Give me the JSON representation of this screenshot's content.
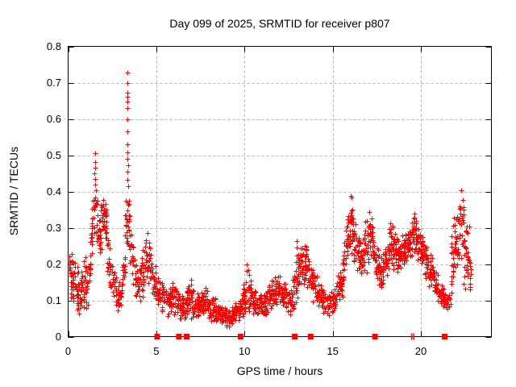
{
  "window": {
    "title": "Day 099 of 2025, SRMTID for receiver p807"
  },
  "chart_data": {
    "type": "scatter",
    "title": "Day 099 of 2025, SRMTID for receiver p807",
    "xlabel": "GPS time / hours",
    "ylabel": "SRMTID / TECUs",
    "xlim": [
      0,
      24
    ],
    "ylim": [
      0,
      0.8
    ],
    "xticks": [
      [
        0,
        "0"
      ],
      [
        5,
        "5"
      ],
      [
        10,
        "10"
      ],
      [
        15,
        "15"
      ],
      [
        20,
        "20"
      ]
    ],
    "yticks": [
      [
        0,
        "0"
      ],
      [
        0.1,
        "0.1"
      ],
      [
        0.2,
        "0.2"
      ],
      [
        0.3,
        "0.3"
      ],
      [
        0.4,
        "0.4"
      ],
      [
        0.5,
        "0.5"
      ],
      [
        0.6,
        "0.6"
      ],
      [
        0.7,
        "0.7"
      ],
      [
        0.8,
        "0.8"
      ]
    ],
    "grid": true,
    "legend": "none",
    "marker": "plus",
    "marker_color": "#ff0000",
    "grid_color": "#b0b0b0",
    "axis_color": "#000000",
    "seed": 2025099,
    "points_per_hour": 78,
    "envelope_note": "Dense red '+' scatter; band of [hour, y_low, y_high, density_weight] control points read from the plot",
    "envelope": [
      [
        0.05,
        0.13,
        0.27,
        1.6
      ],
      [
        0.3,
        0.07,
        0.24,
        1.4
      ],
      [
        0.6,
        0.05,
        0.2,
        1.2
      ],
      [
        0.9,
        0.06,
        0.22,
        1.2
      ],
      [
        1.2,
        0.08,
        0.26,
        1.2
      ],
      [
        1.45,
        0.27,
        0.46,
        1.4
      ],
      [
        1.6,
        0.25,
        0.43,
        1.2
      ],
      [
        1.8,
        0.2,
        0.36,
        1.0
      ],
      [
        2.0,
        0.3,
        0.41,
        1.8
      ],
      [
        2.15,
        0.22,
        0.4,
        1.2
      ],
      [
        2.3,
        0.12,
        0.28,
        1.0
      ],
      [
        2.6,
        0.07,
        0.2,
        1.0
      ],
      [
        2.9,
        0.05,
        0.16,
        1.0
      ],
      [
        3.1,
        0.08,
        0.2,
        1.0
      ],
      [
        3.3,
        0.24,
        0.4,
        1.5
      ],
      [
        3.45,
        0.22,
        0.4,
        1.5
      ],
      [
        3.6,
        0.13,
        0.3,
        1.0
      ],
      [
        3.9,
        0.09,
        0.2,
        1.0
      ],
      [
        4.2,
        0.1,
        0.24,
        1.0
      ],
      [
        4.5,
        0.16,
        0.32,
        1.3
      ],
      [
        4.7,
        0.1,
        0.24,
        1.0
      ],
      [
        5.0,
        0.07,
        0.19,
        1.1
      ],
      [
        5.4,
        0.05,
        0.15,
        1.1
      ],
      [
        5.8,
        0.05,
        0.14,
        1.1
      ],
      [
        6.05,
        0.05,
        0.21,
        1.3
      ],
      [
        6.3,
        0.04,
        0.12,
        1.1
      ],
      [
        6.6,
        0.04,
        0.11,
        1.1
      ],
      [
        6.95,
        0.04,
        0.19,
        1.3
      ],
      [
        7.2,
        0.04,
        0.12,
        1.2
      ],
      [
        7.6,
        0.05,
        0.14,
        1.2
      ],
      [
        7.9,
        0.05,
        0.14,
        1.2
      ],
      [
        8.2,
        0.04,
        0.12,
        1.2
      ],
      [
        8.6,
        0.03,
        0.1,
        1.2
      ],
      [
        9.0,
        0.02,
        0.08,
        1.2
      ],
      [
        9.4,
        0.03,
        0.09,
        1.2
      ],
      [
        9.8,
        0.04,
        0.11,
        1.2
      ],
      [
        10.2,
        0.06,
        0.22,
        1.3
      ],
      [
        10.5,
        0.05,
        0.15,
        1.1
      ],
      [
        10.8,
        0.04,
        0.12,
        1.1
      ],
      [
        11.2,
        0.05,
        0.13,
        1.1
      ],
      [
        11.6,
        0.08,
        0.17,
        1.2
      ],
      [
        12.0,
        0.09,
        0.17,
        1.2
      ],
      [
        12.4,
        0.06,
        0.14,
        1.1
      ],
      [
        12.7,
        0.05,
        0.13,
        1.1
      ],
      [
        13.0,
        0.1,
        0.3,
        1.4
      ],
      [
        13.2,
        0.12,
        0.27,
        1.2
      ],
      [
        13.5,
        0.14,
        0.26,
        1.3
      ],
      [
        13.8,
        0.1,
        0.21,
        1.1
      ],
      [
        14.1,
        0.08,
        0.17,
        1.1
      ],
      [
        14.5,
        0.06,
        0.14,
        1.1
      ],
      [
        14.8,
        0.05,
        0.12,
        1.1
      ],
      [
        15.1,
        0.06,
        0.14,
        1.1
      ],
      [
        15.5,
        0.1,
        0.22,
        1.1
      ],
      [
        15.9,
        0.2,
        0.38,
        1.5
      ],
      [
        16.1,
        0.22,
        0.4,
        1.5
      ],
      [
        16.35,
        0.17,
        0.32,
        1.2
      ],
      [
        16.65,
        0.14,
        0.28,
        1.2
      ],
      [
        16.9,
        0.17,
        0.33,
        1.2
      ],
      [
        17.1,
        0.2,
        0.37,
        1.3
      ],
      [
        17.4,
        0.14,
        0.28,
        1.2
      ],
      [
        17.7,
        0.12,
        0.24,
        1.1
      ],
      [
        18.0,
        0.14,
        0.28,
        1.2
      ],
      [
        18.3,
        0.19,
        0.35,
        1.3
      ],
      [
        18.6,
        0.17,
        0.28,
        1.3
      ],
      [
        19.0,
        0.19,
        0.28,
        1.4
      ],
      [
        19.3,
        0.2,
        0.3,
        1.4
      ],
      [
        19.55,
        0.22,
        0.36,
        1.5
      ],
      [
        19.8,
        0.21,
        0.31,
        1.4
      ],
      [
        20.1,
        0.17,
        0.3,
        1.3
      ],
      [
        20.4,
        0.14,
        0.25,
        1.3
      ],
      [
        20.7,
        0.12,
        0.21,
        1.3
      ],
      [
        21.0,
        0.09,
        0.17,
        1.2
      ],
      [
        21.35,
        0.07,
        0.13,
        1.2
      ],
      [
        21.6,
        0.06,
        0.12,
        1.1
      ],
      [
        21.85,
        0.14,
        0.38,
        1.2
      ],
      [
        22.05,
        0.18,
        0.34,
        1.1
      ],
      [
        22.3,
        0.2,
        0.43,
        1.2
      ],
      [
        22.5,
        0.12,
        0.34,
        1.3
      ],
      [
        22.75,
        0.1,
        0.3,
        1.3
      ],
      [
        22.85,
        0.12,
        0.28,
        0.8
      ]
    ],
    "outliers": [
      [
        3.37,
        0.728
      ],
      [
        3.37,
        0.7
      ],
      [
        3.38,
        0.673
      ],
      [
        3.36,
        0.662
      ],
      [
        3.37,
        0.648
      ],
      [
        3.38,
        0.63
      ],
      [
        3.37,
        0.6
      ],
      [
        3.38,
        0.565
      ],
      [
        3.36,
        0.53
      ],
      [
        3.38,
        0.508
      ],
      [
        3.37,
        0.49
      ],
      [
        3.39,
        0.472
      ],
      [
        3.37,
        0.455
      ],
      [
        3.38,
        0.432
      ],
      [
        3.4,
        0.415
      ],
      [
        1.52,
        0.505
      ],
      [
        1.55,
        0.482
      ],
      [
        1.53,
        0.465
      ],
      [
        1.5,
        0.45
      ],
      [
        1.54,
        0.435
      ],
      [
        1.52,
        0.418
      ]
    ],
    "zero_square_markers_hours": [
      5.05,
      6.28,
      6.72,
      9.78,
      12.85,
      13.75,
      17.4,
      21.35
    ],
    "zero_thin_markers_hours": [
      19.48,
      19.6
    ]
  }
}
